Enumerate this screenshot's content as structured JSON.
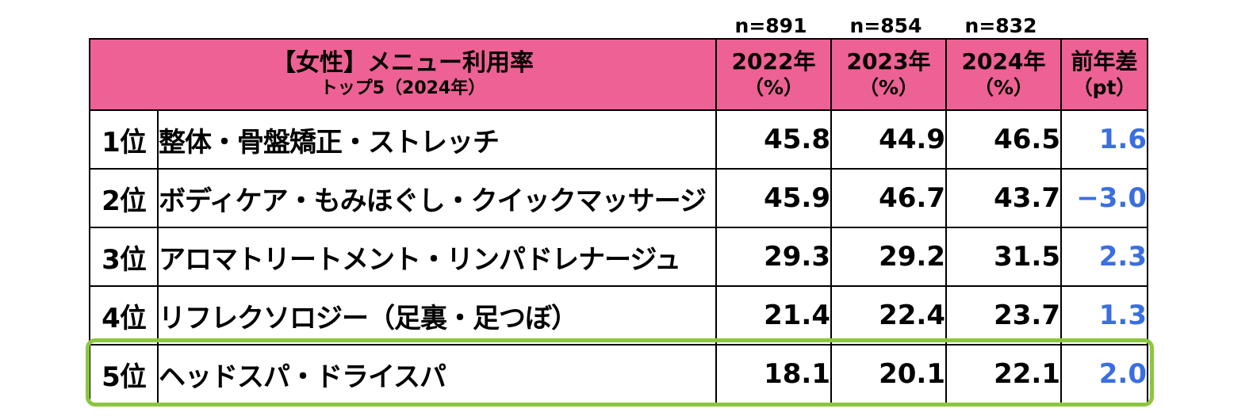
{
  "chart_data": {
    "type": "table",
    "sample_sizes": [
      "n=891",
      "n=854",
      "n=832"
    ],
    "header": {
      "title": "【女性】メニュー利用率",
      "subtitle": "トップ5（2024年）",
      "columns": [
        {
          "year": "2022年",
          "unit": "（%）"
        },
        {
          "year": "2023年",
          "unit": "（%）"
        },
        {
          "year": "2024年",
          "unit": "（%）"
        },
        {
          "year": "前年差",
          "unit": "（pt）"
        }
      ]
    },
    "rows": [
      {
        "rank": "1位",
        "item": "整体・骨盤矯正・ストレッチ",
        "v2022": "45.8",
        "v2023": "44.9",
        "v2024": "46.5",
        "diff": "1.6"
      },
      {
        "rank": "2位",
        "item": "ボディケア・もみほぐし・クイックマッサージ",
        "v2022": "45.9",
        "v2023": "46.7",
        "v2024": "43.7",
        "diff": "−3.0"
      },
      {
        "rank": "3位",
        "item": "アロマトリートメント・リンパドレナージュ",
        "v2022": "29.3",
        "v2023": "29.2",
        "v2024": "31.5",
        "diff": "2.3"
      },
      {
        "rank": "4位",
        "item": "リフレクソロジー（足裏・足つぼ）",
        "v2022": "21.4",
        "v2023": "22.4",
        "v2024": "23.7",
        "diff": "1.3"
      },
      {
        "rank": "5位",
        "item": "ヘッドスパ・ドライスパ",
        "v2022": "18.1",
        "v2023": "20.1",
        "v2024": "22.1",
        "diff": "2.0"
      }
    ],
    "highlighted_row": 4,
    "colors": {
      "header_bg": "#ee6194",
      "diff_text": "#3b6fe0",
      "highlight_border": "#8cc63f"
    }
  }
}
